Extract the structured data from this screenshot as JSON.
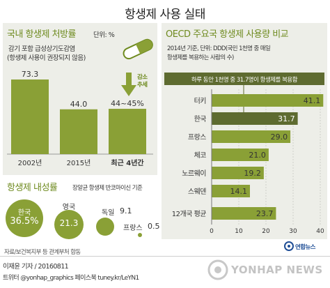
{
  "page_title": "항생제 사용 실태",
  "left_top": {
    "title": "국내 항생제 처방률",
    "unit": "단위: %",
    "subtitle_line1": "감기 포함 급성상기도감염",
    "subtitle_line2": "(항생제 사용이 권장되지 않음)",
    "trend_label_line1": "감소",
    "trend_label_line2": "추세"
  },
  "left_bottom": {
    "title": "항생제 내성률",
    "basis": "장알균 항생제 반코마이신 기준",
    "items": [
      {
        "country": "한국",
        "value": "36.5%"
      },
      {
        "country": "영국",
        "value": "21.3"
      },
      {
        "country": "독일",
        "value": "9.1"
      },
      {
        "country": "프랑스",
        "value": "0.5"
      }
    ],
    "bubble_values": [
      36.5,
      21.3,
      9.1,
      0.5
    ]
  },
  "right": {
    "title": "OECD 주요국 항생제 사용량 비교",
    "note_line1": "2014년 기준, 단위: DDD(국민 1천명 중 매일",
    "note_line2": "항생제를  복용하는 사람의 수)",
    "callout": "하루 동안 1천명 중 31.7명이 항생제를 복용함"
  },
  "source": "자료/보건복지부 등 관계부처 합동",
  "byline": "이재윤 기자 / 20160811",
  "twitter": "트위터 @yonhap_graphics  페이스북 tuney.kr/LeYN1",
  "logo_text": "연합뉴스",
  "watermark": "YONHAP NEWS",
  "colors": {
    "olive": "#6e8a1e",
    "bar_green": "#8aa036",
    "dark_green": "#5e6b30",
    "panel": "#edeee8",
    "title_green": "#6e8a1e"
  },
  "chart_data": [
    {
      "type": "bar",
      "title": "국내 항생제 처방률",
      "categories": [
        "2002년",
        "2015년",
        "최근 4년간"
      ],
      "values": [
        73.3,
        44.0,
        44.5
      ],
      "value_labels": [
        "73.3",
        "44.0",
        "44~45%"
      ],
      "value_range_last": [
        44,
        45
      ],
      "ylabel": "단위: %",
      "ylim": [
        0,
        80
      ]
    },
    {
      "type": "bar",
      "orientation": "horizontal",
      "title": "OECD 주요국 항생제 사용량 비교",
      "categories": [
        "터키",
        "한국",
        "프랑스",
        "체코",
        "노르웨이",
        "스웨덴",
        "12개국 평균"
      ],
      "values": [
        41.1,
        31.7,
        29.0,
        21.0,
        19.2,
        14.1,
        23.7
      ],
      "value_labels": [
        "41.1",
        "31.7",
        "29.0",
        "21.0",
        "19.2",
        "14.1",
        "23.7"
      ],
      "highlight": "한국",
      "xlim": [
        0,
        40
      ],
      "xticks": [
        "0",
        "10",
        "20",
        "30",
        "40"
      ]
    }
  ]
}
